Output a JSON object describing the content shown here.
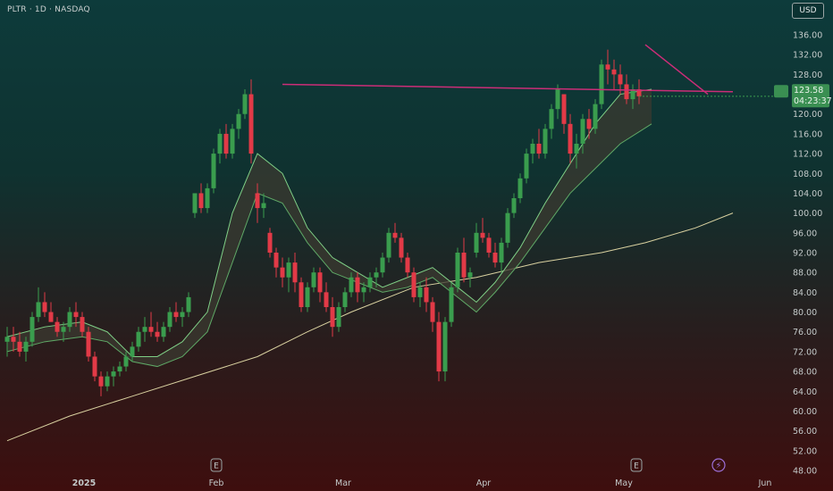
{
  "header": {
    "symbol": "PLTR · 1D · NASDAQ",
    "currency": "USD"
  },
  "colors": {
    "up": "#3a9d4e",
    "down": "#e23a47",
    "ribbon_fast": "#7fcf86",
    "ribbon_slow": "#5fa866",
    "ribbon_fill": "#3b3a30",
    "ma_long": "#d9d1a0",
    "trendline": "#cc2d78",
    "label_bg": "#3a8f52"
  },
  "price_label": {
    "line1": "123.58",
    "line2": "04:23:37"
  },
  "event_icons": [
    "earnings-icon",
    "earnings-icon",
    "dividend-lightning-icon"
  ],
  "chart_data": {
    "type": "candlestick",
    "ylim": [
      47,
      138
    ],
    "y_ticks": [
      "136.00",
      "132.00",
      "128.00",
      "124.00",
      "120.00",
      "116.00",
      "112.00",
      "108.00",
      "104.00",
      "100.00",
      "96.00",
      "92.00",
      "88.00",
      "84.00",
      "80.00",
      "76.00",
      "72.00",
      "68.00",
      "64.00",
      "60.00",
      "56.00",
      "52.00",
      "48.00"
    ],
    "x_labels": [
      {
        "text": "2025",
        "bold": true
      },
      {
        "text": "Feb",
        "bold": false
      },
      {
        "text": "Mar",
        "bold": false
      },
      {
        "text": "Apr",
        "bold": false
      },
      {
        "text": "May",
        "bold": false
      },
      {
        "text": "Jun",
        "bold": false
      }
    ],
    "candles": [
      [
        74,
        77,
        71,
        75
      ],
      [
        75,
        77,
        72,
        74
      ],
      [
        74,
        76,
        71,
        72
      ],
      [
        72,
        75,
        70,
        74
      ],
      [
        74,
        80,
        73,
        79
      ],
      [
        79,
        85,
        78,
        82
      ],
      [
        82,
        84,
        79,
        80
      ],
      [
        80,
        82,
        78,
        78
      ],
      [
        78,
        79,
        75,
        76
      ],
      [
        76,
        78,
        74,
        77
      ],
      [
        77,
        81,
        76,
        80
      ],
      [
        80,
        82,
        77,
        79
      ],
      [
        79,
        80,
        75,
        76
      ],
      [
        76,
        77,
        70,
        71
      ],
      [
        71,
        72,
        66,
        67
      ],
      [
        67,
        68,
        63,
        65
      ],
      [
        65,
        68,
        64,
        67
      ],
      [
        67,
        69,
        65,
        68
      ],
      [
        68,
        70,
        67,
        69
      ],
      [
        69,
        72,
        68,
        71
      ],
      [
        71,
        74,
        70,
        73
      ],
      [
        73,
        77,
        72,
        76
      ],
      [
        76,
        79,
        74,
        77
      ],
      [
        77,
        80,
        75,
        76
      ],
      [
        76,
        78,
        74,
        75
      ],
      [
        75,
        78,
        74,
        77
      ],
      [
        77,
        81,
        76,
        80
      ],
      [
        80,
        82,
        78,
        79
      ],
      [
        79,
        81,
        77,
        80
      ],
      [
        80,
        84,
        79,
        83
      ],
      [
        100,
        104,
        99,
        104
      ],
      [
        104,
        106,
        100,
        101
      ],
      [
        101,
        106,
        100,
        105
      ],
      [
        105,
        113,
        104,
        112
      ],
      [
        112,
        117,
        110,
        116
      ],
      [
        116,
        118,
        111,
        112
      ],
      [
        112,
        118,
        111,
        117
      ],
      [
        117,
        121,
        115,
        120
      ],
      [
        120,
        125,
        119,
        124
      ],
      [
        124,
        127,
        110,
        112
      ],
      [
        104,
        106,
        98,
        101
      ],
      [
        101,
        104,
        99,
        102
      ],
      [
        96,
        97,
        91,
        92
      ],
      [
        92,
        93,
        87,
        89
      ],
      [
        89,
        91,
        85,
        87
      ],
      [
        87,
        91,
        84,
        90
      ],
      [
        90,
        92,
        84,
        86
      ],
      [
        86,
        87,
        80,
        81
      ],
      [
        81,
        86,
        80,
        85
      ],
      [
        85,
        89,
        84,
        88
      ],
      [
        88,
        89,
        82,
        84
      ],
      [
        84,
        86,
        80,
        81
      ],
      [
        81,
        83,
        75,
        77
      ],
      [
        77,
        82,
        76,
        81
      ],
      [
        81,
        85,
        80,
        84
      ],
      [
        84,
        88,
        83,
        87
      ],
      [
        87,
        88,
        82,
        84
      ],
      [
        84,
        86,
        82,
        85
      ],
      [
        85,
        88,
        84,
        87
      ],
      [
        87,
        89,
        85,
        88
      ],
      [
        88,
        92,
        87,
        91
      ],
      [
        91,
        97,
        90,
        96
      ],
      [
        96,
        98,
        94,
        95
      ],
      [
        95,
        96,
        90,
        91
      ],
      [
        91,
        92,
        87,
        88
      ],
      [
        88,
        89,
        82,
        83
      ],
      [
        83,
        86,
        81,
        85
      ],
      [
        85,
        87,
        80,
        82
      ],
      [
        82,
        83,
        76,
        78
      ],
      [
        78,
        80,
        66,
        68
      ],
      [
        68,
        79,
        66,
        78
      ],
      [
        78,
        86,
        77,
        85
      ],
      [
        85,
        93,
        84,
        92
      ],
      [
        92,
        95,
        86,
        87
      ],
      [
        87,
        89,
        85,
        88
      ],
      [
        92,
        98,
        91,
        96
      ],
      [
        96,
        99,
        94,
        95
      ],
      [
        95,
        96,
        91,
        92
      ],
      [
        92,
        94,
        89,
        90
      ],
      [
        90,
        95,
        88,
        94
      ],
      [
        94,
        101,
        93,
        100
      ],
      [
        100,
        104,
        99,
        103
      ],
      [
        103,
        108,
        102,
        107
      ],
      [
        107,
        113,
        106,
        112
      ],
      [
        112,
        115,
        110,
        114
      ],
      [
        114,
        117,
        111,
        112
      ],
      [
        112,
        118,
        111,
        117
      ],
      [
        117,
        122,
        115,
        121
      ],
      [
        121,
        126,
        119,
        125
      ],
      [
        124,
        124,
        116,
        118
      ],
      [
        118,
        120,
        110,
        112
      ],
      [
        112,
        116,
        109,
        114
      ],
      [
        114,
        120,
        112,
        119
      ],
      [
        119,
        121,
        115,
        117
      ],
      [
        117,
        123,
        116,
        122
      ],
      [
        122,
        131,
        121,
        130
      ],
      [
        130,
        133,
        126,
        129
      ],
      [
        129,
        131,
        125,
        128
      ],
      [
        128,
        130,
        124,
        126
      ],
      [
        126,
        128,
        122,
        123
      ],
      [
        123,
        126,
        121,
        125
      ],
      [
        125,
        127,
        122,
        123.58
      ]
    ],
    "ma_long": [
      [
        0,
        54
      ],
      [
        10,
        59
      ],
      [
        20,
        63
      ],
      [
        30,
        67
      ],
      [
        40,
        71
      ],
      [
        48,
        76
      ],
      [
        55,
        80
      ],
      [
        65,
        85
      ],
      [
        75,
        87
      ],
      [
        85,
        90
      ],
      [
        95,
        92
      ],
      [
        102,
        94
      ],
      [
        110,
        97
      ],
      [
        116,
        100
      ]
    ],
    "ribbon_upper": [
      [
        0,
        75
      ],
      [
        6,
        77
      ],
      [
        12,
        78
      ],
      [
        16,
        76
      ],
      [
        20,
        71
      ],
      [
        24,
        71
      ],
      [
        28,
        74
      ],
      [
        32,
        80
      ],
      [
        36,
        100
      ],
      [
        40,
        112
      ],
      [
        44,
        108
      ],
      [
        48,
        97
      ],
      [
        52,
        91
      ],
      [
        56,
        88
      ],
      [
        60,
        85
      ],
      [
        64,
        87
      ],
      [
        68,
        89
      ],
      [
        72,
        85
      ],
      [
        75,
        82
      ],
      [
        78,
        86
      ],
      [
        82,
        93
      ],
      [
        86,
        102
      ],
      [
        90,
        110
      ],
      [
        94,
        118
      ],
      [
        98,
        124
      ],
      [
        103,
        125
      ]
    ],
    "ribbon_lower": [
      [
        0,
        72
      ],
      [
        6,
        74
      ],
      [
        12,
        75
      ],
      [
        16,
        74
      ],
      [
        20,
        70
      ],
      [
        24,
        69
      ],
      [
        28,
        71
      ],
      [
        32,
        76
      ],
      [
        36,
        90
      ],
      [
        40,
        104
      ],
      [
        44,
        102
      ],
      [
        48,
        94
      ],
      [
        52,
        88
      ],
      [
        56,
        86
      ],
      [
        60,
        84
      ],
      [
        64,
        85
      ],
      [
        68,
        87
      ],
      [
        72,
        83
      ],
      [
        75,
        80
      ],
      [
        78,
        84
      ],
      [
        82,
        90
      ],
      [
        86,
        97
      ],
      [
        90,
        104
      ],
      [
        94,
        109
      ],
      [
        98,
        114
      ],
      [
        103,
        118
      ]
    ],
    "resistance_line": {
      "from": [
        44,
        126
      ],
      "to": [
        116,
        124.5
      ]
    },
    "trend_line": {
      "from": [
        102,
        134
      ],
      "to": [
        112,
        124
      ]
    }
  }
}
